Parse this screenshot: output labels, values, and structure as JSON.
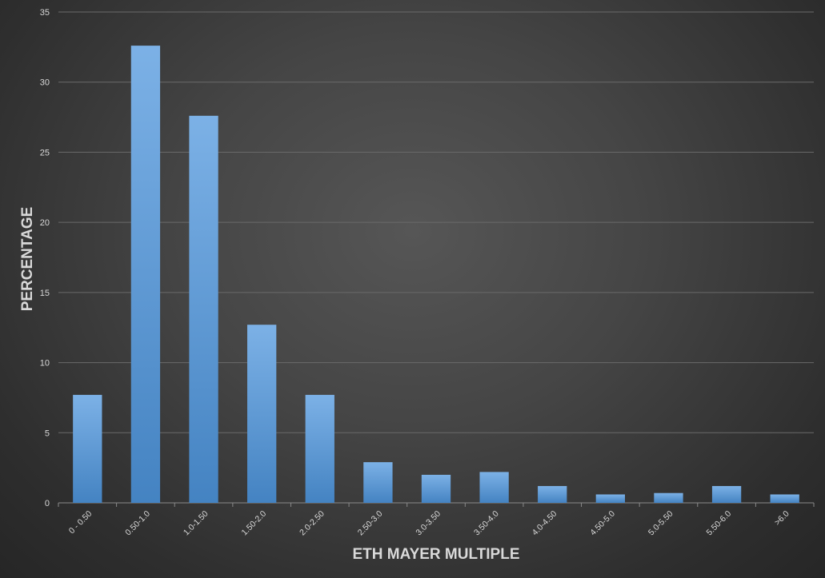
{
  "chart_data": {
    "type": "bar",
    "categories": [
      "0 - 0.50",
      "0.50-1.0",
      "1.0-1.50",
      "1.50-2.0",
      "2.0-2.50",
      "2.50-3.0",
      "3.0-3.50",
      "3.50-4.0",
      "4.0-4.50",
      "4.50-5.0",
      "5.0-5.50",
      "5.50-6.0",
      ">6.0"
    ],
    "values": [
      7.7,
      32.6,
      27.6,
      12.7,
      7.7,
      2.9,
      2.0,
      2.2,
      1.2,
      0.6,
      0.7,
      1.2,
      0.6
    ],
    "xlabel": "ETH MAYER MULTIPLE",
    "ylabel": "PERCENTAGE",
    "ylim": [
      0,
      35
    ],
    "yticks": [
      0,
      5,
      10,
      15,
      20,
      25,
      30,
      35
    ],
    "grid": true,
    "legend": "none",
    "colors": {
      "bar": "#5b9bd5",
      "bar_light": "#7cb1e6",
      "bar_dark": "#4483c2"
    }
  }
}
